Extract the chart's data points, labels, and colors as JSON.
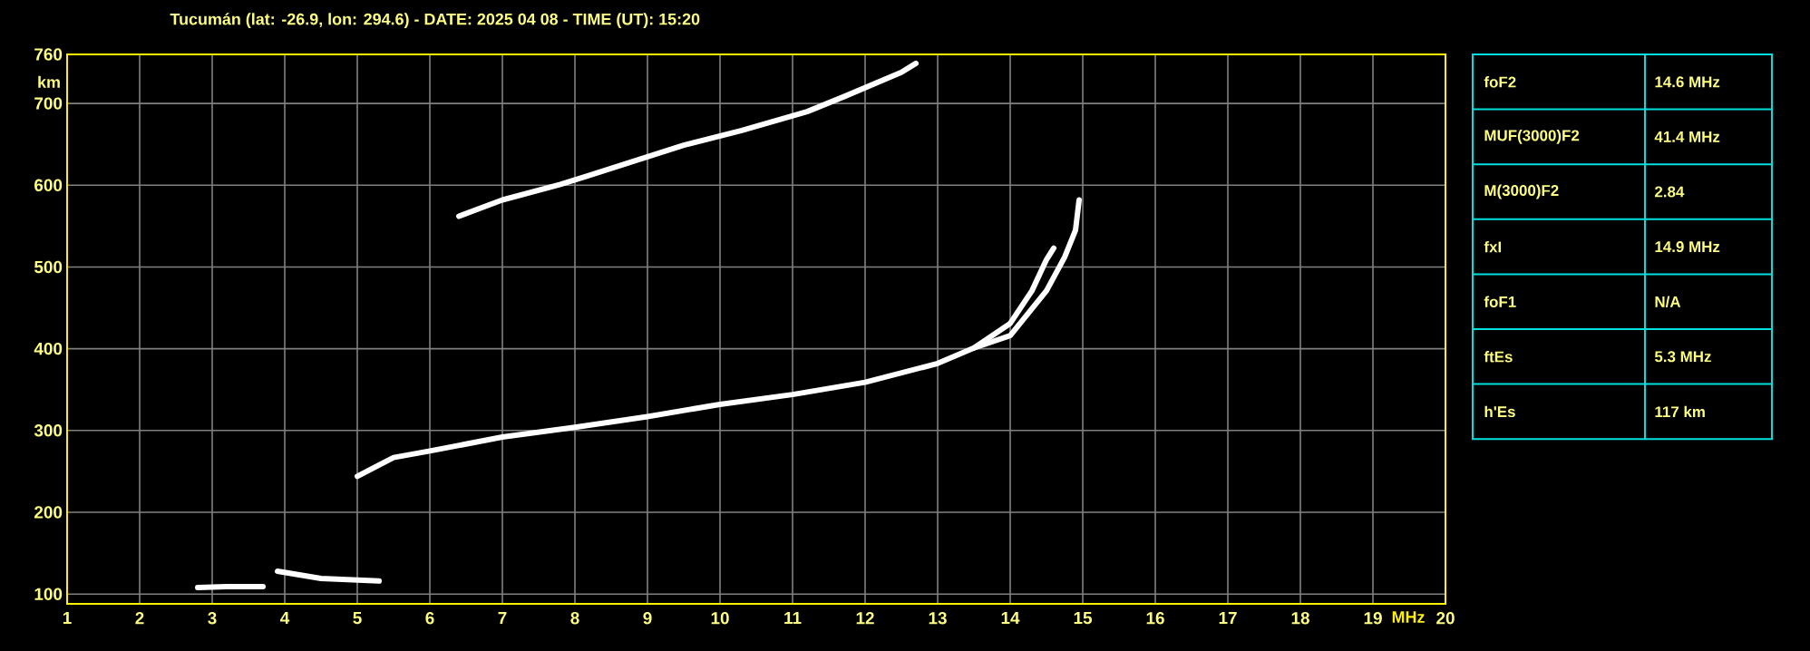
{
  "chart_data": {
    "type": "line",
    "title": "Tucumán (lat: -26.9, lon: 294.6) - DATE: 2025 04 08 - TIME (UT): 15:20",
    "xlabel": "MHz",
    "ylabel": "km",
    "xlim": [
      1,
      20
    ],
    "ylim": [
      88,
      760
    ],
    "xticks": [
      1,
      2,
      3,
      4,
      5,
      6,
      7,
      8,
      9,
      10,
      11,
      12,
      13,
      14,
      15,
      16,
      17,
      18,
      19,
      20
    ],
    "yticks": [
      100,
      200,
      300,
      400,
      500,
      600,
      700,
      760
    ],
    "grid": true,
    "marker": "none",
    "line_style": "solid",
    "series": [
      {
        "color": "#ffffff",
        "x": [
          5.0,
          5.5,
          6,
          7,
          8,
          9,
          10,
          11,
          12,
          13,
          13.5,
          14,
          14.3,
          14.5,
          14.6
        ],
        "values": [
          244,
          267,
          275,
          292,
          304,
          317,
          332,
          344,
          359,
          382,
          401,
          431,
          471,
          509,
          523
        ]
      },
      {
        "color": "#ffffff",
        "x": [
          13.5,
          14,
          14.5,
          14.75,
          14.9,
          14.95
        ],
        "values": [
          401,
          416,
          471,
          512,
          545,
          582
        ]
      },
      {
        "color": "#ffffff",
        "x": [
          6.4,
          7.0,
          7.8,
          8.2,
          9.5,
          10.3,
          11.2,
          11.7,
          12.5,
          12.7
        ],
        "values": [
          562,
          582,
          601,
          612,
          649,
          667,
          690,
          708,
          738,
          749
        ]
      },
      {
        "color": "#ffffff",
        "x": [
          2.8,
          3.2,
          3.7
        ],
        "values": [
          108,
          109,
          109
        ]
      },
      {
        "color": "#ffffff",
        "x": [
          3.9,
          4.5,
          5.3
        ],
        "values": [
          128,
          119,
          116
        ]
      }
    ],
    "annotations": [
      "foF2",
      "14.6 MHz",
      "MUF(3000)F2",
      "41.4 MHz",
      "M(3000)F2",
      "2.84",
      "fxI",
      "14.9 MHz",
      "foF1",
      "N/A",
      "ftEs",
      "5.3 MHz",
      "h'Es",
      "117 km"
    ]
  }
}
